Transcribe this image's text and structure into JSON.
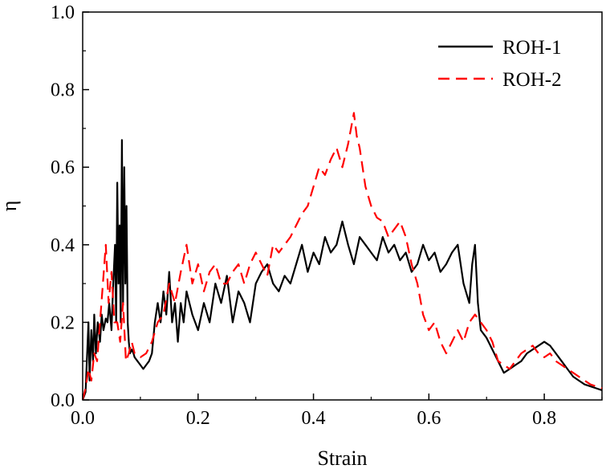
{
  "chart_data": {
    "type": "line",
    "title": "",
    "xlabel": "Strain",
    "ylabel": "η",
    "xlim": [
      0.0,
      0.9
    ],
    "ylim": [
      0.0,
      1.0
    ],
    "x_ticks": [
      "0.0",
      "0.2",
      "0.4",
      "0.6",
      "0.8"
    ],
    "x_tick_values": [
      0.0,
      0.2,
      0.4,
      0.6,
      0.8
    ],
    "y_ticks": [
      "0.0",
      "0.2",
      "0.4",
      "0.6",
      "0.8",
      "1.0"
    ],
    "y_tick_values": [
      0.0,
      0.2,
      0.4,
      0.6,
      0.8,
      1.0
    ],
    "grid": false,
    "legend_position": "top-right",
    "series": [
      {
        "name": "ROH-1",
        "color": "#000000",
        "dash": "solid",
        "x": [
          0.0,
          0.005,
          0.01,
          0.012,
          0.015,
          0.018,
          0.02,
          0.023,
          0.026,
          0.03,
          0.033,
          0.036,
          0.04,
          0.043,
          0.046,
          0.05,
          0.053,
          0.056,
          0.058,
          0.06,
          0.062,
          0.064,
          0.066,
          0.068,
          0.07,
          0.072,
          0.074,
          0.076,
          0.078,
          0.08,
          0.082,
          0.085,
          0.088,
          0.09,
          0.095,
          0.1,
          0.105,
          0.11,
          0.115,
          0.12,
          0.125,
          0.13,
          0.135,
          0.14,
          0.145,
          0.15,
          0.155,
          0.16,
          0.165,
          0.17,
          0.175,
          0.18,
          0.19,
          0.2,
          0.21,
          0.22,
          0.23,
          0.24,
          0.25,
          0.26,
          0.27,
          0.28,
          0.29,
          0.3,
          0.31,
          0.32,
          0.33,
          0.34,
          0.35,
          0.36,
          0.37,
          0.38,
          0.39,
          0.4,
          0.41,
          0.42,
          0.43,
          0.44,
          0.45,
          0.46,
          0.47,
          0.48,
          0.49,
          0.5,
          0.51,
          0.52,
          0.53,
          0.54,
          0.55,
          0.56,
          0.57,
          0.58,
          0.59,
          0.6,
          0.61,
          0.62,
          0.63,
          0.64,
          0.65,
          0.66,
          0.67,
          0.675,
          0.68,
          0.685,
          0.69,
          0.7,
          0.71,
          0.72,
          0.73,
          0.74,
          0.75,
          0.76,
          0.77,
          0.78,
          0.79,
          0.8,
          0.81,
          0.82,
          0.83,
          0.84,
          0.85,
          0.86,
          0.87,
          0.88,
          0.89,
          0.9
        ],
        "values": [
          0.0,
          0.02,
          0.2,
          0.05,
          0.18,
          0.1,
          0.22,
          0.12,
          0.2,
          0.15,
          0.22,
          0.18,
          0.21,
          0.2,
          0.25,
          0.18,
          0.3,
          0.4,
          0.2,
          0.56,
          0.3,
          0.45,
          0.2,
          0.67,
          0.25,
          0.6,
          0.3,
          0.5,
          0.2,
          0.15,
          0.12,
          0.13,
          0.12,
          0.11,
          0.1,
          0.09,
          0.08,
          0.09,
          0.1,
          0.12,
          0.2,
          0.25,
          0.2,
          0.28,
          0.22,
          0.33,
          0.2,
          0.25,
          0.15,
          0.25,
          0.2,
          0.28,
          0.22,
          0.18,
          0.25,
          0.2,
          0.3,
          0.25,
          0.32,
          0.2,
          0.28,
          0.25,
          0.2,
          0.3,
          0.33,
          0.35,
          0.3,
          0.28,
          0.32,
          0.3,
          0.35,
          0.4,
          0.33,
          0.38,
          0.35,
          0.42,
          0.38,
          0.4,
          0.46,
          0.4,
          0.35,
          0.42,
          0.4,
          0.38,
          0.36,
          0.42,
          0.38,
          0.4,
          0.36,
          0.38,
          0.33,
          0.35,
          0.4,
          0.36,
          0.38,
          0.33,
          0.35,
          0.38,
          0.4,
          0.3,
          0.25,
          0.35,
          0.4,
          0.25,
          0.18,
          0.16,
          0.13,
          0.1,
          0.07,
          0.08,
          0.09,
          0.1,
          0.12,
          0.13,
          0.14,
          0.15,
          0.14,
          0.12,
          0.1,
          0.08,
          0.06,
          0.05,
          0.04,
          0.035,
          0.03,
          0.025
        ]
      },
      {
        "name": "ROH-2",
        "color": "#ff0000",
        "dash": "dashed",
        "x": [
          0.0,
          0.005,
          0.01,
          0.015,
          0.02,
          0.025,
          0.03,
          0.035,
          0.04,
          0.045,
          0.05,
          0.055,
          0.06,
          0.065,
          0.07,
          0.075,
          0.08,
          0.085,
          0.09,
          0.1,
          0.11,
          0.12,
          0.13,
          0.14,
          0.15,
          0.16,
          0.17,
          0.18,
          0.19,
          0.2,
          0.21,
          0.22,
          0.23,
          0.24,
          0.25,
          0.26,
          0.27,
          0.28,
          0.29,
          0.3,
          0.31,
          0.32,
          0.33,
          0.34,
          0.35,
          0.36,
          0.37,
          0.38,
          0.39,
          0.4,
          0.41,
          0.42,
          0.43,
          0.44,
          0.45,
          0.46,
          0.465,
          0.47,
          0.475,
          0.48,
          0.49,
          0.5,
          0.51,
          0.52,
          0.53,
          0.54,
          0.55,
          0.56,
          0.57,
          0.58,
          0.59,
          0.6,
          0.61,
          0.62,
          0.63,
          0.64,
          0.65,
          0.66,
          0.67,
          0.68,
          0.69,
          0.7,
          0.71,
          0.72,
          0.73,
          0.74,
          0.75,
          0.76,
          0.77,
          0.78,
          0.79,
          0.8,
          0.81,
          0.82,
          0.83,
          0.84,
          0.85,
          0.86,
          0.87,
          0.88,
          0.89,
          0.9
        ],
        "values": [
          0.0,
          0.03,
          0.08,
          0.05,
          0.12,
          0.1,
          0.2,
          0.3,
          0.4,
          0.25,
          0.33,
          0.2,
          0.2,
          0.15,
          0.25,
          0.1,
          0.12,
          0.15,
          0.12,
          0.11,
          0.12,
          0.15,
          0.2,
          0.22,
          0.3,
          0.25,
          0.33,
          0.4,
          0.3,
          0.35,
          0.28,
          0.33,
          0.35,
          0.3,
          0.3,
          0.33,
          0.35,
          0.3,
          0.35,
          0.38,
          0.35,
          0.32,
          0.4,
          0.38,
          0.4,
          0.42,
          0.45,
          0.48,
          0.5,
          0.55,
          0.6,
          0.58,
          0.62,
          0.65,
          0.6,
          0.66,
          0.7,
          0.74,
          0.68,
          0.65,
          0.55,
          0.5,
          0.47,
          0.46,
          0.42,
          0.44,
          0.46,
          0.42,
          0.35,
          0.3,
          0.22,
          0.18,
          0.2,
          0.15,
          0.12,
          0.15,
          0.18,
          0.15,
          0.2,
          0.22,
          0.2,
          0.18,
          0.15,
          0.1,
          0.09,
          0.08,
          0.1,
          0.12,
          0.13,
          0.14,
          0.12,
          0.11,
          0.12,
          0.1,
          0.09,
          0.08,
          0.07,
          0.06,
          0.05,
          0.04,
          0.035,
          0.03
        ]
      }
    ]
  }
}
